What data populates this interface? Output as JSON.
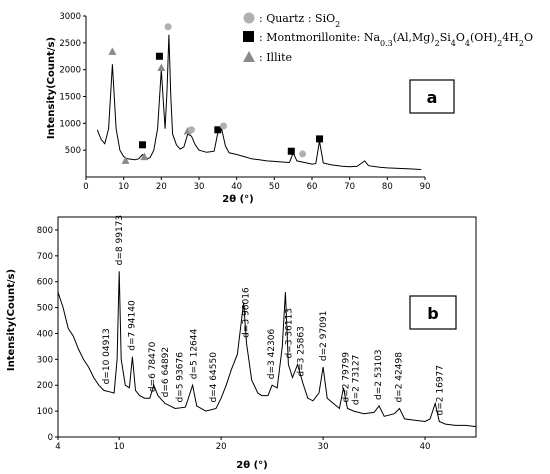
{
  "chart_data": [
    {
      "panel": "a",
      "type": "line",
      "xlabel": "2θ (°)",
      "ylabel": "Intensity(Count/s)",
      "xlim": [
        0,
        90
      ],
      "ylim": [
        0,
        3000
      ],
      "xticks": [
        0,
        10,
        20,
        30,
        40,
        50,
        60,
        70,
        80,
        90
      ],
      "yticks": [
        500,
        1000,
        1500,
        2000,
        2500,
        3000
      ],
      "legend_position": "top-right",
      "legend": [
        {
          "symbol": "circle",
          "color": "#b0b0b0",
          "label": ": Quartz : SiO",
          "sub": "2"
        },
        {
          "symbol": "square",
          "color": "#000000",
          "label": ": Montmorillonite: Na",
          "sub": "0.3",
          "rest": "(Al,Mg)",
          "rest_sub": "2",
          "rest2": "Si",
          "rest2_sub": "4",
          "rest3": "O",
          "rest3_sub": "4",
          "rest4": "(OH)",
          "rest4_sub": "2",
          "rest5": "4H",
          "rest5_sub": "2",
          "rest6": "O"
        },
        {
          "symbol": "triangle",
          "color": "#8a8a8a",
          "label": ": Illite"
        }
      ],
      "series": [
        {
          "values": [
            [
              3,
              880
            ],
            [
              4,
              700
            ],
            [
              5,
              620
            ],
            [
              6,
              900
            ],
            [
              7,
              2100
            ],
            [
              8,
              900
            ],
            [
              9,
              500
            ],
            [
              10,
              380
            ],
            [
              11,
              340
            ],
            [
              12,
              330
            ],
            [
              13,
              320
            ],
            [
              14,
              340
            ],
            [
              15,
              420
            ],
            [
              16,
              340
            ],
            [
              17,
              360
            ],
            [
              18,
              500
            ],
            [
              19,
              900
            ],
            [
              20,
              2000
            ],
            [
              21,
              900
            ],
            [
              21.5,
              1600
            ],
            [
              22,
              2650
            ],
            [
              22.5,
              1500
            ],
            [
              23,
              800
            ],
            [
              24,
              600
            ],
            [
              25,
              520
            ],
            [
              26,
              560
            ],
            [
              27,
              800
            ],
            [
              28,
              760
            ],
            [
              29,
              600
            ],
            [
              30,
              500
            ],
            [
              31,
              480
            ],
            [
              32,
              460
            ],
            [
              33,
              470
            ],
            [
              34,
              480
            ],
            [
              35,
              820
            ],
            [
              36,
              900
            ],
            [
              37,
              580
            ],
            [
              38,
              450
            ],
            [
              40,
              420
            ],
            [
              42,
              380
            ],
            [
              44,
              340
            ],
            [
              46,
              320
            ],
            [
              48,
              300
            ],
            [
              50,
              290
            ],
            [
              52,
              280
            ],
            [
              54,
              270
            ],
            [
              55,
              450
            ],
            [
              56,
              300
            ],
            [
              58,
              270
            ],
            [
              60,
              240
            ],
            [
              61,
              250
            ],
            [
              62,
              670
            ],
            [
              63,
              260
            ],
            [
              65,
              230
            ],
            [
              68,
              200
            ],
            [
              70,
              190
            ],
            [
              72,
              200
            ],
            [
              74,
              300
            ],
            [
              75,
              210
            ],
            [
              78,
              180
            ],
            [
              80,
              170
            ],
            [
              83,
              160
            ],
            [
              86,
              150
            ],
            [
              89,
              140
            ]
          ]
        }
      ],
      "markers": [
        {
          "type": "triangle",
          "x": 7,
          "y": 2340
        },
        {
          "type": "triangle",
          "x": 10.5,
          "y": 310
        },
        {
          "type": "triangle",
          "x": 15.5,
          "y": 380
        },
        {
          "type": "square",
          "x": 15,
          "y": 600
        },
        {
          "type": "square",
          "x": 19.5,
          "y": 2250
        },
        {
          "type": "triangle",
          "x": 20,
          "y": 2040
        },
        {
          "type": "circle",
          "x": 21.8,
          "y": 2800
        },
        {
          "type": "triangle",
          "x": 27,
          "y": 860
        },
        {
          "type": "circle",
          "x": 28,
          "y": 880
        },
        {
          "type": "square",
          "x": 35,
          "y": 880
        },
        {
          "type": "circle",
          "x": 36.5,
          "y": 950
        },
        {
          "type": "square",
          "x": 54.5,
          "y": 480
        },
        {
          "type": "circle",
          "x": 57.5,
          "y": 430
        },
        {
          "type": "square",
          "x": 62,
          "y": 710
        }
      ]
    },
    {
      "panel": "b",
      "type": "line",
      "xlabel": "2θ (°)",
      "ylabel": "Intensity(Count/s)",
      "xlim": [
        4,
        45
      ],
      "ylim": [
        0,
        850
      ],
      "xticks": [
        4,
        10,
        20,
        30,
        40
      ],
      "yticks": [
        0,
        100,
        200,
        300,
        400,
        500,
        600,
        700,
        800
      ],
      "series": [
        {
          "values": [
            [
              4,
              560
            ],
            [
              4.5,
              500
            ],
            [
              5,
              420
            ],
            [
              5.5,
              390
            ],
            [
              6,
              340
            ],
            [
              6.5,
              300
            ],
            [
              7,
              270
            ],
            [
              7.5,
              230
            ],
            [
              8,
              200
            ],
            [
              8.5,
              180
            ],
            [
              9,
              175
            ],
            [
              9.5,
              170
            ],
            [
              9.8,
              300
            ],
            [
              10,
              640
            ],
            [
              10.2,
              300
            ],
            [
              10.6,
              200
            ],
            [
              11,
              190
            ],
            [
              11.3,
              310
            ],
            [
              11.6,
              180
            ],
            [
              12,
              160
            ],
            [
              12.5,
              150
            ],
            [
              13,
              150
            ],
            [
              13.4,
              200
            ],
            [
              13.8,
              160
            ],
            [
              14.5,
              130
            ],
            [
              15.5,
              110
            ],
            [
              16.5,
              115
            ],
            [
              17.2,
              200
            ],
            [
              17.6,
              120
            ],
            [
              18.5,
              100
            ],
            [
              19.5,
              110
            ],
            [
              20,
              150
            ],
            [
              20.5,
              200
            ],
            [
              21,
              260
            ],
            [
              21.6,
              320
            ],
            [
              22.2,
              520
            ],
            [
              22.5,
              360
            ],
            [
              23,
              220
            ],
            [
              23.6,
              170
            ],
            [
              24,
              160
            ],
            [
              24.6,
              160
            ],
            [
              25,
              200
            ],
            [
              25.5,
              190
            ],
            [
              26,
              350
            ],
            [
              26.3,
              560
            ],
            [
              26.6,
              280
            ],
            [
              27,
              230
            ],
            [
              27.5,
              280
            ],
            [
              28,
              210
            ],
            [
              28.5,
              150
            ],
            [
              29,
              140
            ],
            [
              29.6,
              170
            ],
            [
              30,
              270
            ],
            [
              30.4,
              150
            ],
            [
              31,
              130
            ],
            [
              31.6,
              110
            ],
            [
              32,
              190
            ],
            [
              32.4,
              110
            ],
            [
              33,
              100
            ],
            [
              34,
              90
            ],
            [
              35,
              95
            ],
            [
              35.5,
              120
            ],
            [
              36,
              80
            ],
            [
              37,
              90
            ],
            [
              37.5,
              110
            ],
            [
              38,
              70
            ],
            [
              39,
              65
            ],
            [
              40,
              60
            ],
            [
              40.5,
              70
            ],
            [
              41,
              130
            ],
            [
              41.4,
              60
            ],
            [
              42,
              50
            ],
            [
              43,
              45
            ],
            [
              44,
              45
            ],
            [
              45,
              40
            ]
          ]
        }
      ],
      "peak_labels": [
        {
          "x": 8.7,
          "label": "d=10 04913"
        },
        {
          "x": 10.0,
          "label": "d=8 99173"
        },
        {
          "x": 11.2,
          "label": "d=7 94140"
        },
        {
          "x": 13.2,
          "label": "d=6 78470"
        },
        {
          "x": 14.5,
          "label": "d=6 64892"
        },
        {
          "x": 15.9,
          "label": "d=5 93676"
        },
        {
          "x": 17.3,
          "label": "d=5 12644"
        },
        {
          "x": 19.2,
          "label": "d=4 64550"
        },
        {
          "x": 22.4,
          "label": "d=3 96016"
        },
        {
          "x": 24.9,
          "label": "d=3 42306"
        },
        {
          "x": 26.6,
          "label": "d=3 36113"
        },
        {
          "x": 27.8,
          "label": "d=3 25863"
        },
        {
          "x": 30.0,
          "label": "d=2 97091"
        },
        {
          "x": 32.2,
          "label": "d=2 79799"
        },
        {
          "x": 33.2,
          "label": "d=2 73127"
        },
        {
          "x": 35.4,
          "label": "d=2 53103"
        },
        {
          "x": 37.4,
          "label": "d=2 42498"
        },
        {
          "x": 41.4,
          "label": "d=2 16977"
        }
      ]
    }
  ],
  "panel_labels": {
    "a": "a",
    "b": "b"
  }
}
